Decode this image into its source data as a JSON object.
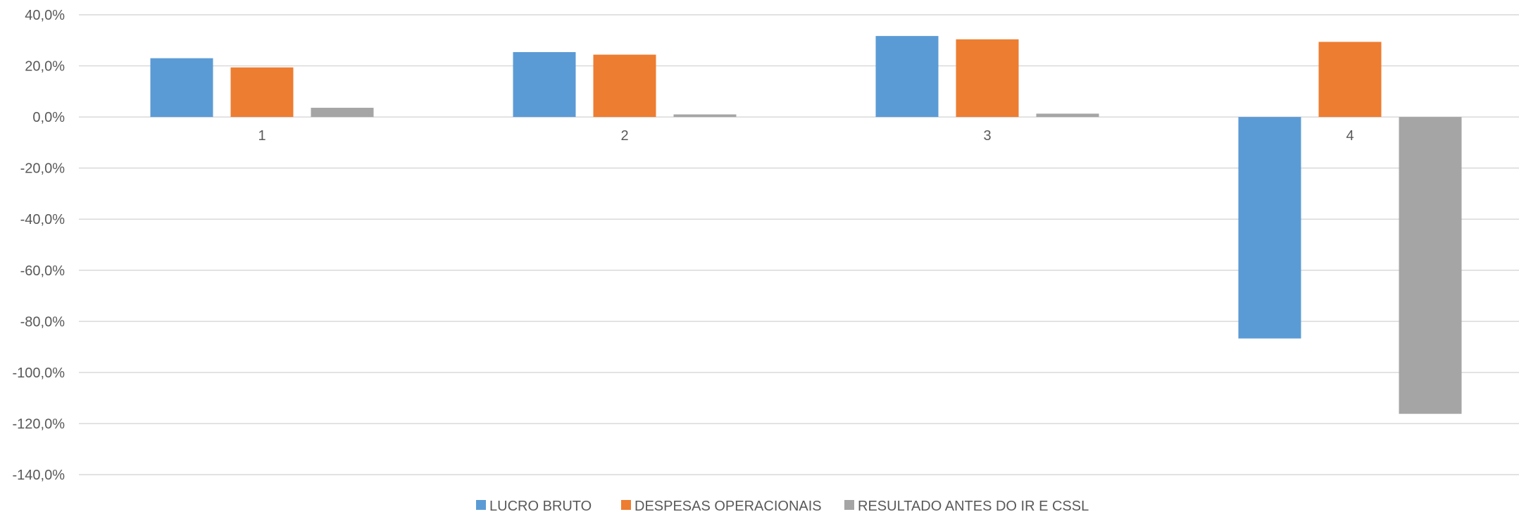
{
  "chart_data": {
    "type": "bar",
    "categories": [
      "1",
      "2",
      "3",
      "4"
    ],
    "series": [
      {
        "name": "LUCRO BRUTO",
        "color": "#5B9BD5",
        "values": [
          23.0,
          25.4,
          31.7,
          -86.7
        ]
      },
      {
        "name": "DESPESAS OPERACIONAIS",
        "color": "#ED7D31",
        "values": [
          19.4,
          24.4,
          30.4,
          29.4
        ]
      },
      {
        "name": "RESULTADO ANTES DO IR E CSSL",
        "color": "#A5A5A5",
        "values": [
          3.6,
          1.0,
          1.3,
          -116.2
        ]
      }
    ],
    "ylim": [
      -140,
      40
    ],
    "yticks": [
      40,
      20,
      0,
      -20,
      -40,
      -60,
      -80,
      -100,
      -120,
      -140
    ],
    "ytick_labels": [
      "40,0%",
      "20,0%",
      "0,0%",
      "-20,0%",
      "-40,0%",
      "-60,0%",
      "-80,0%",
      "-100,0%",
      "-120,0%",
      "-140,0%"
    ],
    "grid": true,
    "legend_position": "bottom",
    "title": "",
    "xlabel": "",
    "ylabel": ""
  }
}
